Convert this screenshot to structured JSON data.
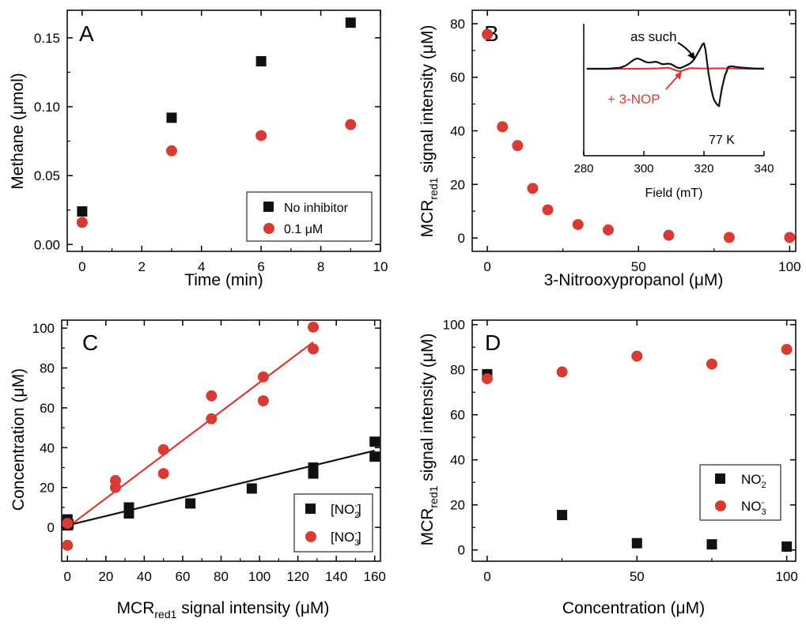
{
  "colors": {
    "black": "#111111",
    "red": "#d83a34",
    "axis": "#000000"
  },
  "chart_data": [
    {
      "panel": "A",
      "type": "scatter",
      "xlabel": "Time (min)",
      "ylabel": "Methane (μmol)",
      "xlim": [
        -0.5,
        10
      ],
      "ylim": [
        -0.005,
        0.17
      ],
      "xticks": [
        "0",
        "2",
        "4",
        "6",
        "8",
        "10"
      ],
      "yticks": [
        "0.00",
        "0.05",
        "0.10",
        "0.15"
      ],
      "legend_placement": "bottom-right",
      "series": [
        {
          "name": "No inhibitor",
          "marker": "square",
          "color": "#111111",
          "x": [
            0,
            3,
            6,
            9
          ],
          "y": [
            0.024,
            0.092,
            0.133,
            0.161
          ]
        },
        {
          "name": "0.1 μM",
          "marker": "circle",
          "color": "#d83a34",
          "x": [
            0,
            3,
            6,
            9
          ],
          "y": [
            0.016,
            0.068,
            0.079,
            0.087
          ]
        }
      ]
    },
    {
      "panel": "B",
      "type": "scatter",
      "xlabel": "3-Nitrooxypropanol (μM)",
      "ylabel": "signal intensity (μM)",
      "ylabel_main": "MCR",
      "ylabel_sub": "red1",
      "xlim": [
        -5,
        102
      ],
      "ylim": [
        -5,
        85
      ],
      "xticks": [
        "0",
        "50",
        "100"
      ],
      "yticks": [
        "0",
        "20",
        "40",
        "60",
        "80"
      ],
      "series": [
        {
          "marker": "circle",
          "color": "#d83a34",
          "x": [
            0,
            5,
            10,
            15,
            20,
            30,
            40,
            60,
            80,
            100
          ],
          "y": [
            76,
            41.5,
            34.5,
            18.5,
            10.5,
            5,
            3,
            1,
            0.2,
            0.2
          ]
        }
      ],
      "inset": {
        "type": "line",
        "xlabel": "Field (mT)",
        "xlim": [
          280,
          340
        ],
        "xticks": [
          "280",
          "300",
          "320",
          "340"
        ],
        "annotations": [
          "as such",
          "+ 3-NOP",
          "77 K"
        ],
        "series": [
          {
            "name": "as such",
            "color": "#111111",
            "x": [
              281,
              284,
              288,
              292,
              294,
              296,
              297,
              298,
              299,
              300,
              301,
              302,
              303,
              304,
              305,
              306,
              307,
              308,
              309,
              310,
              311,
              312,
              313,
              314,
              315,
              316,
              317,
              318,
              319,
              319.5,
              320,
              320.5,
              321,
              321.5,
              322,
              322.5,
              323,
              323.5,
              324,
              324.5,
              325,
              325.5,
              326,
              326.5,
              327,
              327.5,
              328,
              329,
              330,
              332,
              336,
              340
            ],
            "y": [
              0,
              0,
              0,
              0.5,
              1.5,
              3.5,
              4.5,
              4.8,
              4.3,
              3.6,
              3,
              2.9,
              3.1,
              3.3,
              2.8,
              2.2,
              2.2,
              2.4,
              2.2,
              1.5,
              0.6,
              0.3,
              0.8,
              1.5,
              2.2,
              3.2,
              5,
              7.5,
              10,
              11.5,
              12,
              9,
              3.5,
              -2,
              -6,
              -10,
              -13,
              -15,
              -16,
              -17,
              -17.5,
              -13,
              -9,
              -6,
              -3,
              -1.5,
              0.8,
              1.2,
              1,
              0.6,
              0.2,
              0
            ]
          },
          {
            "name": "+ 3-NOP",
            "color": "#d83a34",
            "x": [
              281,
              290,
              300,
              305,
              308,
              309,
              310,
              311,
              312,
              313,
              314,
              315,
              316,
              318,
              320,
              325,
              330,
              335,
              340
            ],
            "y": [
              0,
              0,
              0,
              0.2,
              0.5,
              0.2,
              -0.4,
              -0.9,
              -1.2,
              -0.8,
              -0.3,
              0.2,
              0.3,
              0.2,
              0.1,
              0.2,
              0.1,
              0,
              0
            ]
          }
        ]
      }
    },
    {
      "panel": "C",
      "type": "scatter",
      "xlabel": "signal intensity (μM)",
      "xlabel_main": "MCR",
      "xlabel_sub": "red1",
      "ylabel": "Concentration (μM)",
      "xlim": [
        -3,
        163
      ],
      "ylim": [
        -17,
        104
      ],
      "xticks": [
        "0",
        "20",
        "40",
        "60",
        "80",
        "100",
        "120",
        "140",
        "160"
      ],
      "yticks": [
        "0",
        "20",
        "40",
        "60",
        "80",
        "100"
      ],
      "legend_placement": "bottom-right",
      "series": [
        {
          "name": "[NO2-]",
          "marker": "square",
          "color": "#111111",
          "x": [
            0,
            0,
            0.5,
            32,
            32,
            64,
            96,
            128,
            128,
            160,
            160
          ],
          "y": [
            4,
            1,
            1.5,
            10,
            7,
            12,
            19.5,
            30,
            27,
            43,
            35.5
          ],
          "fit": [
            [
              0,
              1
            ],
            [
              160,
              38.5
            ]
          ]
        },
        {
          "name": "[NO3-]",
          "marker": "circle",
          "color": "#d83a34",
          "x": [
            0,
            0,
            25,
            25,
            50,
            50,
            75,
            75,
            102,
            102,
            128,
            128
          ],
          "y": [
            2,
            -9,
            23.5,
            20,
            39,
            27,
            66,
            54.5,
            75.5,
            63.5,
            100.5,
            89.5
          ],
          "fit": [
            [
              0,
              0
            ],
            [
              128,
              93
            ]
          ]
        }
      ],
      "legend": [
        {
          "label": "[NO2-]",
          "pre": "[NO",
          "sub": "2",
          "sup": "-",
          "post": "]"
        },
        {
          "label": "[NO3-]",
          "pre": "[NO",
          "sub": "3",
          "sup": "-",
          "post": "]"
        }
      ]
    },
    {
      "panel": "D",
      "type": "scatter",
      "xlabel": "Concentration (μM)",
      "ylabel": "signal intensity (μM)",
      "ylabel_main": "MCR",
      "ylabel_sub": "red1",
      "xlim": [
        -5,
        103
      ],
      "ylim": [
        -5,
        102
      ],
      "xticks": [
        "0",
        "50",
        "100"
      ],
      "yticks": [
        "0",
        "20",
        "40",
        "60",
        "80",
        "100"
      ],
      "legend_placement": "bottom-right",
      "series": [
        {
          "name": "NO2-",
          "marker": "square",
          "color": "#111111",
          "x": [
            0,
            25,
            50,
            75,
            100
          ],
          "y": [
            78,
            15.5,
            3,
            2.5,
            1.5
          ]
        },
        {
          "name": "NO3-",
          "marker": "circle",
          "color": "#d83a34",
          "x": [
            0,
            25,
            50,
            75,
            100
          ],
          "y": [
            76,
            79,
            86,
            82.5,
            89
          ]
        }
      ],
      "legend": [
        {
          "label": "NO2-",
          "pre": "NO",
          "sub": "2",
          "sup": "-",
          "post": ""
        },
        {
          "label": "NO3-",
          "pre": "NO",
          "sub": "3",
          "sup": "-",
          "post": ""
        }
      ]
    }
  ],
  "panels": {
    "A": {
      "letter": "A",
      "legend": [
        "No inhibitor",
        "0.1 μM"
      ]
    },
    "B": {
      "letter": "B",
      "inset_as_such": "as such",
      "inset_nop": "+ 3-NOP",
      "inset_temp": "77 K"
    },
    "C": {
      "letter": "C"
    },
    "D": {
      "letter": "D"
    }
  }
}
